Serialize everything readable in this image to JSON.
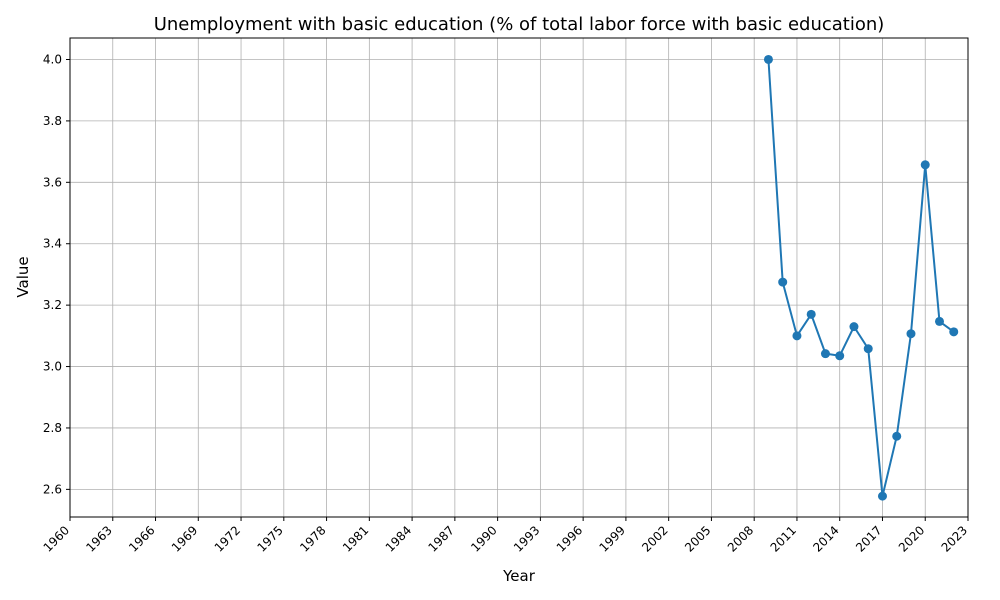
{
  "chart_data": {
    "type": "line",
    "title": "Unemployment with basic education (% of total labor force with basic education)",
    "xlabel": "Year",
    "ylabel": "Value",
    "xlim": [
      1960,
      2023
    ],
    "ylim": [
      2.51,
      4.07
    ],
    "x_ticks": [
      1960,
      1963,
      1966,
      1969,
      1972,
      1975,
      1978,
      1981,
      1984,
      1987,
      1990,
      1993,
      1996,
      1999,
      2002,
      2005,
      2008,
      2011,
      2014,
      2017,
      2020,
      2023
    ],
    "y_ticks": [
      "2.6",
      "2.8",
      "3.0",
      "3.2",
      "3.4",
      "3.6",
      "3.8",
      "4.0"
    ],
    "grid": true,
    "color": "#1f77b4",
    "series": [
      {
        "x": [
          2009,
          2010,
          2011,
          2012,
          2013,
          2014,
          2015,
          2016,
          2017,
          2018,
          2019,
          2020,
          2021,
          2022
        ],
        "values": [
          4.0,
          3.275,
          3.1,
          3.17,
          3.042,
          3.035,
          3.13,
          3.058,
          2.578,
          2.773,
          3.107,
          3.657,
          3.147,
          3.113
        ]
      }
    ]
  }
}
